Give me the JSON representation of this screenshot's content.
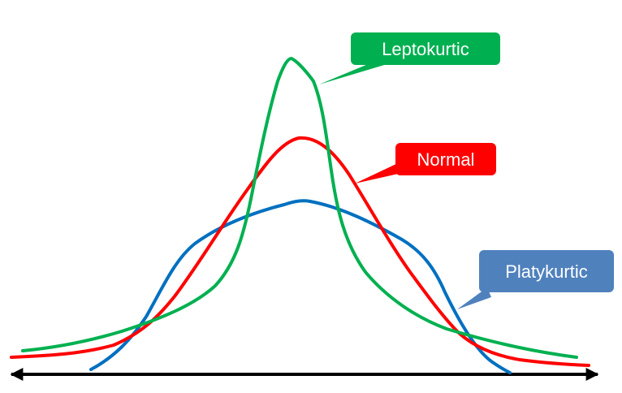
{
  "diagram": {
    "title": "",
    "callouts": {
      "leptokurtic": {
        "label": "Leptokurtic",
        "color": "#00b050"
      },
      "normal": {
        "label": "Normal",
        "color": "#ff0000"
      },
      "platykurtic": {
        "label": "Platykurtic",
        "color": "#4f81bd"
      }
    },
    "curves": {
      "leptokurtic_color": "#00b050",
      "normal_color": "#ff0000",
      "platykurtic_color": "#0070c0"
    },
    "axis": {
      "color": "#000000",
      "arrows": "both-ends"
    }
  }
}
